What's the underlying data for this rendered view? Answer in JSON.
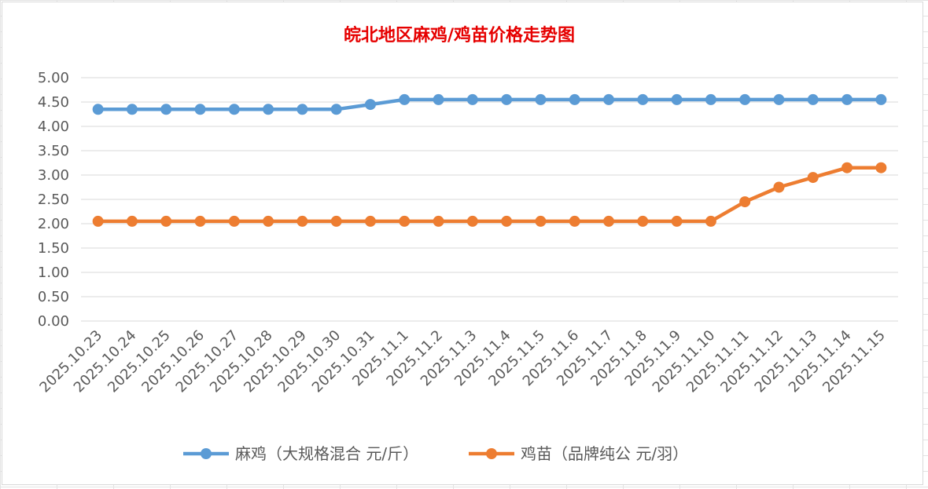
{
  "chart_data": {
    "type": "line",
    "title": "皖北地区麻鸡/鸡苗价格走势图",
    "xlabel": "",
    "ylabel": "",
    "ylim": [
      0,
      5
    ],
    "yticks": [
      "0.00",
      "0.50",
      "1.00",
      "1.50",
      "2.00",
      "2.50",
      "3.00",
      "3.50",
      "4.00",
      "4.50",
      "5.00"
    ],
    "grid": "horizontal",
    "legend_position": "bottom",
    "categories": [
      "2025.10.23",
      "2025.10.24",
      "2025.10.25",
      "2025.10.26",
      "2025.10.27",
      "2025.10.28",
      "2025.10.29",
      "2025.10.30",
      "2025.10.31",
      "2025.11.1",
      "2025.11.2",
      "2025.11.3",
      "2025.11.4",
      "2025.11.5",
      "2025.11.6",
      "2025.11.7",
      "2025.11.8",
      "2025.11.9",
      "2025.11.10",
      "2025.11.11",
      "2025.11.12",
      "2025.11.13",
      "2025.11.14",
      "2025.11.15"
    ],
    "series": [
      {
        "name": "麻鸡（大规格混合 元/斤）",
        "color": "#5b9bd5",
        "values": [
          4.35,
          4.35,
          4.35,
          4.35,
          4.35,
          4.35,
          4.35,
          4.35,
          4.45,
          4.55,
          4.55,
          4.55,
          4.55,
          4.55,
          4.55,
          4.55,
          4.55,
          4.55,
          4.55,
          4.55,
          4.55,
          4.55,
          4.55,
          4.55
        ]
      },
      {
        "name": "鸡苗（品牌纯公 元/羽）",
        "color": "#ed7d31",
        "values": [
          2.05,
          2.05,
          2.05,
          2.05,
          2.05,
          2.05,
          2.05,
          2.05,
          2.05,
          2.05,
          2.05,
          2.05,
          2.05,
          2.05,
          2.05,
          2.05,
          2.05,
          2.05,
          2.05,
          2.45,
          2.75,
          2.95,
          3.15,
          3.15
        ]
      }
    ]
  }
}
